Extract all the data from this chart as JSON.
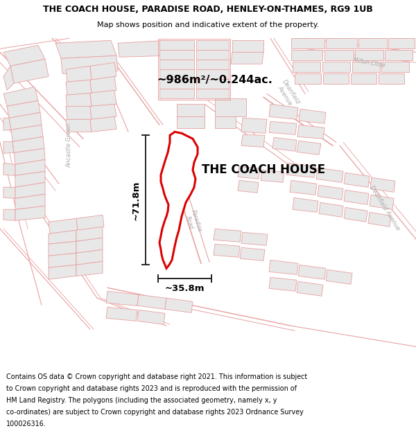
{
  "title_line1": "THE COACH HOUSE, PARADISE ROAD, HENLEY-ON-THAMES, RG9 1UB",
  "title_line2": "Map shows position and indicative extent of the property.",
  "property_label": "THE COACH HOUSE",
  "area_label": "~986m²/~0.244ac.",
  "width_label": "~35.8m",
  "height_label": "~71.8m",
  "footer_lines": [
    "Contains OS data © Crown copyright and database right 2021. This information is subject",
    "to Crown copyright and database rights 2023 and is reproduced with the permission of",
    "HM Land Registry. The polygons (including the associated geometry, namely x, y",
    "co-ordinates) are subject to Crown copyright and database rights 2023 Ordnance Survey",
    "100026316."
  ],
  "map_bg": "#ffffff",
  "road_color": "#e8a0a0",
  "building_face": "#e8e8e8",
  "building_edge": "#e8a0a0",
  "property_color": "#dd0000",
  "dim_color": "#222222",
  "street_color": "#aaaaaa",
  "title_bg": "#ffffff",
  "footer_bg": "#ffffff"
}
